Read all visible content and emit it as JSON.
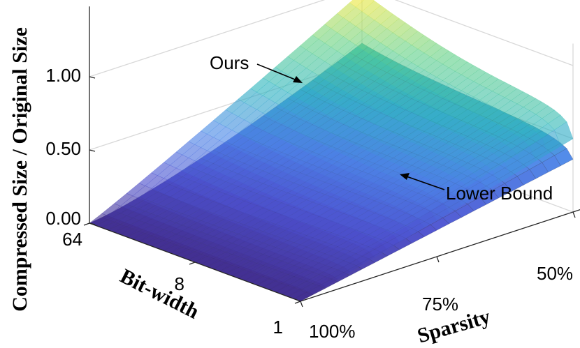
{
  "chart_data": {
    "type": "surface3d",
    "zlabel": "Compressed Size / Original Size",
    "xlabel": "Bit-width",
    "ylabel": "Sparsity",
    "z_ticks": [
      "0.00",
      "0.50",
      "1.00"
    ],
    "bitwidth_ticks": [
      "64",
      "8",
      "1"
    ],
    "sparsity_ticks": [
      "100%",
      "75%",
      "50%"
    ],
    "bitwidth_values": [
      64,
      8,
      1
    ],
    "sparsity_values": [
      1.0,
      0.75,
      0.5
    ],
    "zlim": [
      0,
      1
    ],
    "grid": true,
    "series": [
      {
        "name": "Ours",
        "style": "smooth semi-transparent surface"
      },
      {
        "name": "Lower Bound",
        "style": "meshed surface"
      }
    ],
    "annotations": [
      "Ours",
      "Lower Bound"
    ],
    "colormap": [
      "#3f2a8c",
      "#4a4fd0",
      "#4a86e8",
      "#2cb5bf",
      "#62d188",
      "#f4e83b"
    ]
  }
}
